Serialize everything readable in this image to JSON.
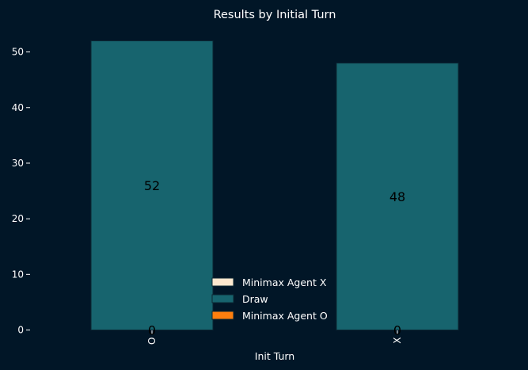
{
  "chart_data": {
    "type": "bar",
    "stacked": true,
    "title": "Results by Initial Turn",
    "xlabel": "Init Turn",
    "ylabel": "",
    "categories": [
      "O",
      "X"
    ],
    "ylim": [
      0,
      54
    ],
    "yticks": [
      0,
      10,
      20,
      30,
      40,
      50
    ],
    "grid": false,
    "legend_position": "bottom-center",
    "series": [
      {
        "name": "Minimax Agent X",
        "values": [
          0,
          0
        ],
        "color": "#fde8cf"
      },
      {
        "name": "Draw",
        "values": [
          52,
          48
        ],
        "color": "#17646e"
      },
      {
        "name": "Minimax Agent O",
        "values": [
          0,
          0
        ],
        "color": "#ff7f0e"
      }
    ],
    "data_labels": [
      [
        "0",
        "0"
      ],
      [
        "52",
        "48"
      ],
      [
        "",
        ""
      ]
    ]
  },
  "colors": {
    "background": "#011627",
    "text": "#ffffff",
    "bar_edge": "#0b2733"
  }
}
